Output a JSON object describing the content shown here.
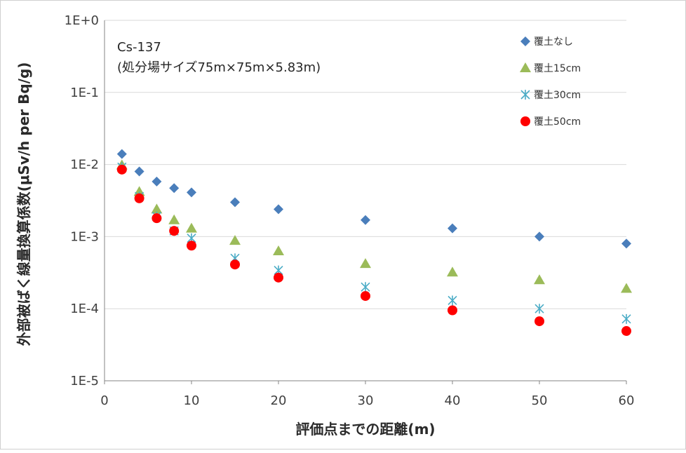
{
  "chart_data": {
    "type": "scatter",
    "title": "",
    "annotation_lines": [
      "Cs-137",
      "(処分場サイズ75m×75m×5.83m)"
    ],
    "xlabel": "評価点までの距離(m)",
    "ylabel": "外部被ばく線量換算係数(μSv/h per Bq/g)",
    "xlim": [
      0,
      60
    ],
    "ylim": [
      1e-05,
      1
    ],
    "yscale": "log",
    "grid": "horizontal",
    "legend_position": "top-right",
    "x_ticks": [
      0,
      10,
      20,
      30,
      40,
      50,
      60
    ],
    "x_tick_labels": [
      "0",
      "10",
      "20",
      "30",
      "40",
      "50",
      "60"
    ],
    "y_ticks": [
      1,
      0.1,
      0.01,
      0.001,
      0.0001,
      1e-05
    ],
    "y_tick_labels": [
      "1E+0",
      "1E-1",
      "1E-2",
      "1E-3",
      "1E-4",
      "1E-5"
    ],
    "x": [
      2,
      4,
      6,
      8,
      10,
      15,
      20,
      30,
      40,
      50,
      60
    ],
    "series": [
      {
        "name": "覆土なし",
        "marker": "diamond",
        "color": "#4a7ebb",
        "values": [
          0.014,
          0.008,
          0.0058,
          0.0047,
          0.0041,
          0.003,
          0.0024,
          0.0017,
          0.0013,
          0.001,
          0.0008
        ]
      },
      {
        "name": "覆土15cm",
        "marker": "triangle",
        "color": "#9bbb59",
        "values": [
          0.0098,
          0.0042,
          0.0024,
          0.0017,
          0.0013,
          0.00088,
          0.00063,
          0.00042,
          0.00032,
          0.00025,
          0.00019
        ]
      },
      {
        "name": "覆土30cm",
        "marker": "star",
        "color": "#4bacc6",
        "values": [
          0.0092,
          0.0036,
          0.0019,
          0.0012,
          0.00095,
          0.0005,
          0.00034,
          0.0002,
          0.00013,
          0.0001,
          7.2e-05
        ]
      },
      {
        "name": "覆土50cm",
        "marker": "circle",
        "color": "#ff0000",
        "values": [
          0.0085,
          0.0034,
          0.0018,
          0.0012,
          0.00075,
          0.00041,
          0.00027,
          0.00015,
          9.5e-05,
          6.7e-05,
          4.9e-05
        ]
      }
    ]
  }
}
